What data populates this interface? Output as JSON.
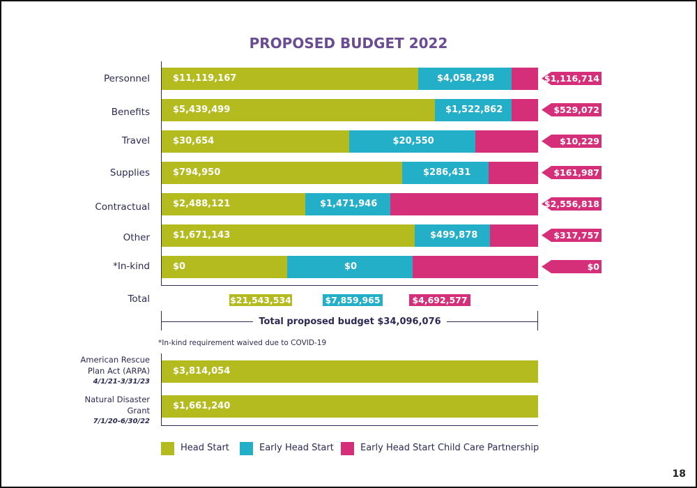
{
  "page_number": "18",
  "colors": {
    "head_start": "#b3bb1e",
    "early_head_start": "#24afc8",
    "partnership": "#d62f79",
    "title": "#6a4c93",
    "text": "#2a2a55"
  },
  "chart_data": {
    "type": "bar",
    "stacked": true,
    "title": "PROPOSED BUDGET 2022",
    "categories": [
      "Personnel",
      "Benefits",
      "Travel",
      "Supplies",
      "Contractual",
      "Other",
      "*In-kind"
    ],
    "series": [
      {
        "name": "Head Start",
        "values": [
          11119167,
          5439499,
          30654,
          794950,
          2488121,
          1671143,
          0
        ],
        "labels": [
          "$11,119,167",
          "$5,439,499",
          "$30,654",
          "$794,950",
          "$2,488,121",
          "$1,671,143",
          "$0"
        ]
      },
      {
        "name": "Early Head Start",
        "values": [
          4058298,
          1522862,
          20550,
          286431,
          1471946,
          499878,
          0
        ],
        "labels": [
          "$4,058,298",
          "$1,522,862",
          "$20,550",
          "$286,431",
          "$1,471,946",
          "$499,878",
          "$0"
        ]
      },
      {
        "name": "Early Head Start Child Care Partnership",
        "values": [
          1116714,
          529072,
          10229,
          161987,
          2556818,
          317757,
          0
        ],
        "labels": [
          "$1,116,714",
          "$529,072",
          "$10,229",
          "$161,987",
          "$2,556,818",
          "$317,757",
          "$0"
        ]
      }
    ],
    "totals": {
      "label": "Total",
      "values": [
        21543534,
        7859965,
        4692577
      ],
      "labels": [
        "$21,543,534",
        "$7,859,965",
        "$4,692,577"
      ]
    },
    "total_budget_label": "Total proposed budget $34,096,076",
    "footnote": "*In-kind requirement waived due to COVID-19",
    "additional_grants": [
      {
        "name_lines": [
          "American Rescue",
          "Plan Act (ARPA)"
        ],
        "dates": "4/1/21-3/31/23",
        "value": 3814054,
        "label": "$3,814,054"
      },
      {
        "name_lines": [
          "Natural Disaster",
          "Grant"
        ],
        "dates": "7/1/20-6/30/22",
        "value": 1661240,
        "label": "$1,661,240"
      }
    ],
    "legend": {
      "placement": "bottom",
      "items": [
        "Head Start",
        "Early Head Start",
        "Early Head Start Child Care Partnership"
      ]
    }
  }
}
